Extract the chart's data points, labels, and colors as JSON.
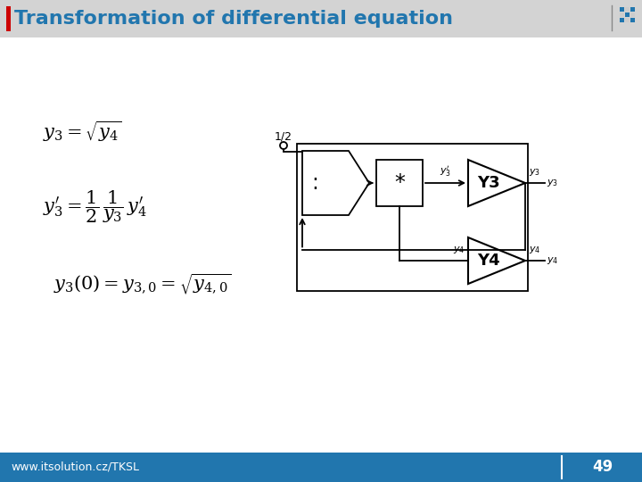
{
  "title": "Transformation of differential equation",
  "title_color": "#2176AE",
  "title_red_bar": "#CC0000",
  "header_bg": "#D3D3D3",
  "content_bg": "#FFFFFF",
  "footer_bg": "#2176AE",
  "footer_text": "www.itsolution.cz/TKSL",
  "footer_page": "49",
  "lw": 1.3
}
